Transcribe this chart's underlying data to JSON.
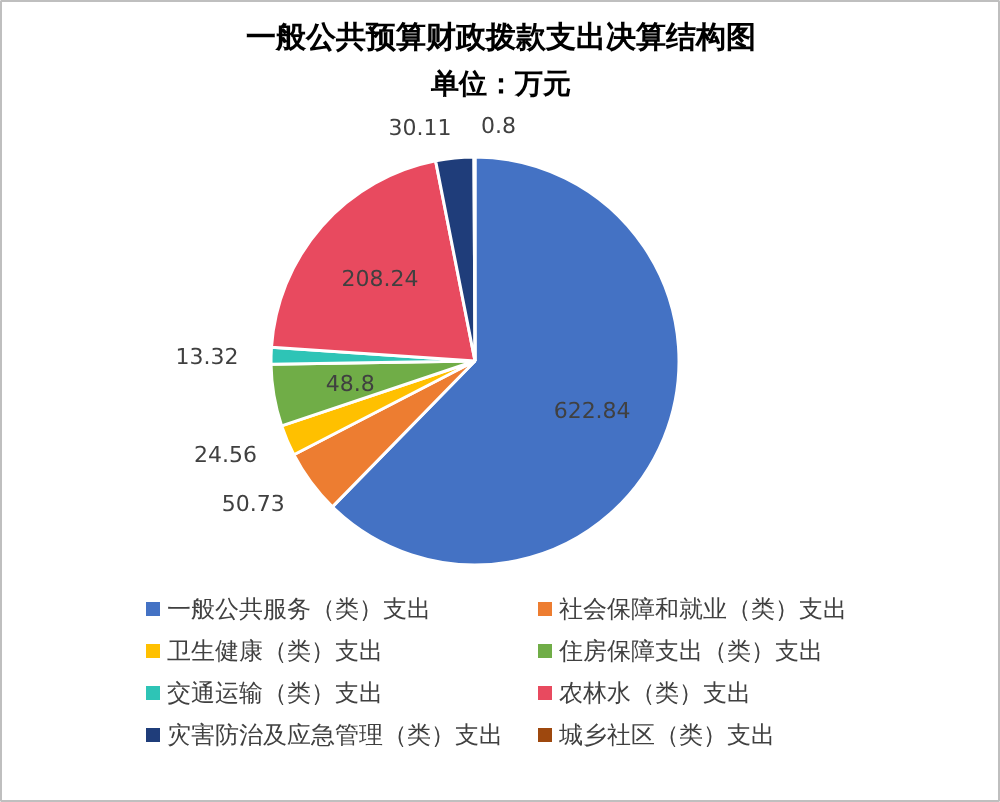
{
  "chart_data": {
    "type": "pie",
    "title": "一般公共预算财政拨款支出决算结构图",
    "subtitle": "单位：万元",
    "categories": [
      "一般公共服务（类）支出",
      "社会保障和就业（类）支出",
      "卫生健康（类）支出",
      "住房保障支出（类）支出",
      "交通运输（类）支出",
      "农林水（类）支出",
      "灾害防治及应急管理（类）支出",
      "城乡社区（类）支出"
    ],
    "values": [
      622.84,
      50.73,
      24.56,
      48.8,
      13.32,
      208.24,
      30.11,
      0.8
    ],
    "colors": [
      "#4472c4",
      "#ed7d31",
      "#ffc000",
      "#70ad47",
      "#2ec4b6",
      "#e84a5f",
      "#1f3d7a",
      "#9e480e"
    ],
    "data_labels": true,
    "legend": "bottom"
  }
}
